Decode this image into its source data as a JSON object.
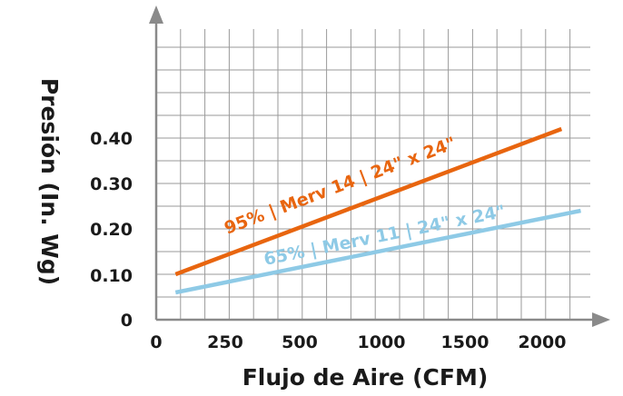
{
  "chart_data": {
    "type": "line",
    "title": "",
    "xlabel": "Flujo de Aire (CFM)",
    "ylabel": "Presión (In. Wg)",
    "x_ticks": [
      "0",
      "250",
      "500",
      "1000",
      "1500",
      "2000"
    ],
    "y_ticks": [
      "0",
      "0.10",
      "0.20",
      "0.30",
      "0.40"
    ],
    "grid": true,
    "legend": "none",
    "series": [
      {
        "name": "95% | Merv 14 | 24\" x 24\"",
        "color": "#e8650f",
        "points": [
          [
            100,
            0.1
          ],
          [
            2100,
            0.42
          ]
        ]
      },
      {
        "name": "65% | Merv 11 | 24\" x 24\"",
        "color": "#8ecae6",
        "points": [
          [
            100,
            0.06
          ],
          [
            2200,
            0.24
          ]
        ]
      }
    ]
  }
}
